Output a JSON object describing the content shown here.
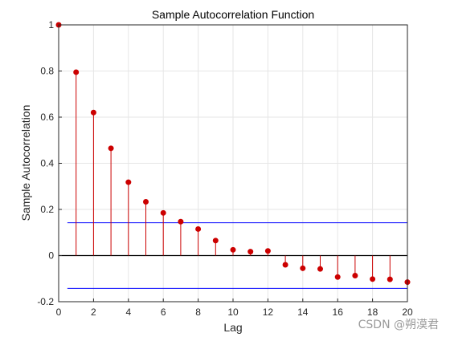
{
  "chart_data": {
    "type": "stem",
    "title": "Sample Autocorrelation Function",
    "xlabel": "Lag",
    "ylabel": "Sample Autocorrelation",
    "xlim": [
      0,
      20
    ],
    "ylim": [
      -0.2,
      1
    ],
    "xticks": [
      "0",
      "2",
      "4",
      "6",
      "8",
      "10",
      "12",
      "14",
      "16",
      "18",
      "20"
    ],
    "yticks": [
      "-0.2",
      "0",
      "0.2",
      "0.4",
      "0.6",
      "0.8",
      "1"
    ],
    "grid": true,
    "x": [
      0,
      1,
      2,
      3,
      4,
      5,
      6,
      7,
      8,
      9,
      10,
      11,
      12,
      13,
      14,
      15,
      16,
      17,
      18,
      19,
      20
    ],
    "values": [
      1.0,
      0.795,
      0.62,
      0.465,
      0.318,
      0.233,
      0.185,
      0.147,
      0.115,
      0.065,
      0.025,
      0.017,
      0.02,
      -0.04,
      -0.055,
      -0.058,
      -0.093,
      -0.087,
      -0.102,
      -0.103,
      -0.115
    ],
    "confidence_bounds": [
      0.142,
      -0.142
    ],
    "confidence_from_lag": 0.5,
    "stem_color": "#cc0000",
    "bound_color": "#0000ff",
    "zero_line_color": "#000000"
  },
  "watermark": "CSDN @朔漠君"
}
